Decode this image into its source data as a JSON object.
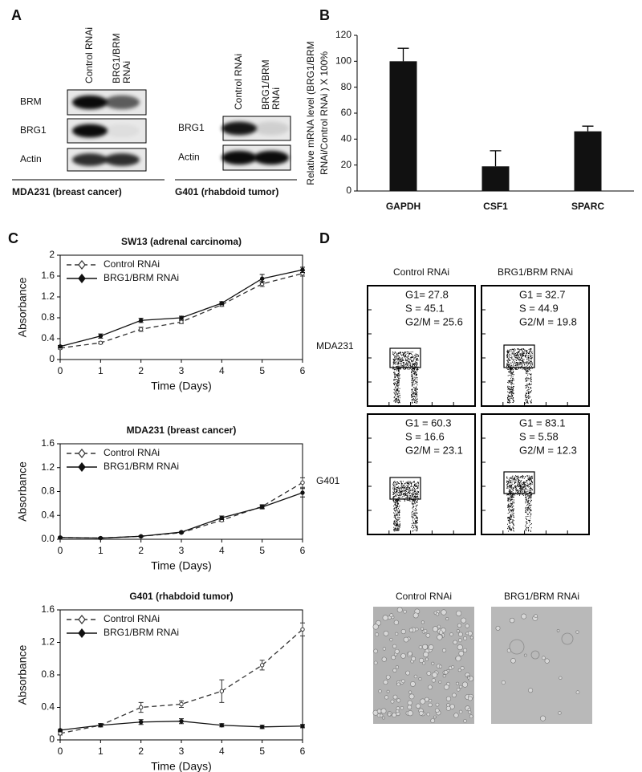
{
  "panels": [
    "A",
    "B",
    "C",
    "D"
  ],
  "blots": [
    {
      "lanes": [
        [
          "Control RNAi"
        ],
        [
          "BRG1/BRM",
          "RNAi"
        ]
      ],
      "rows": [
        "BRM",
        "BRG1",
        "Actin"
      ],
      "caption": "MDA231 (breast cancer)"
    },
    {
      "lanes": [
        [
          "Control RNAi"
        ],
        [
          "BRG1/BRM",
          "RNAi"
        ]
      ],
      "rows": [
        "BRG1",
        "Actin"
      ],
      "caption": "G401 (rhabdoid tumor)"
    }
  ],
  "chart_data": [
    {
      "type": "bar",
      "ylabel": [
        "Relative mRNA level (BRG1/BRM",
        "RNAi/Control RNAi ) X 100%"
      ],
      "categories": [
        "GAPDH",
        "CSF1",
        "SPARC"
      ],
      "values": [
        100,
        19,
        46
      ],
      "errors": [
        10,
        12,
        4
      ],
      "color": "#111111",
      "ylim": [
        0,
        120
      ],
      "yticks": [
        0,
        20,
        40,
        60,
        80,
        100,
        120
      ]
    },
    {
      "type": "line",
      "title": "SW13 (adrenal carcinoma)",
      "xlabel": "Time (Days)",
      "ylabel": "Absorbance",
      "legend": "upper left",
      "x": [
        0,
        1,
        2,
        3,
        4,
        5,
        6
      ],
      "xlim": [
        0,
        6
      ],
      "xticks": [
        0,
        1,
        2,
        3,
        4,
        5,
        6
      ],
      "ylim": [
        0,
        2
      ],
      "yticks": [
        0,
        0.4,
        0.8,
        1.2,
        1.6,
        2
      ],
      "series": [
        {
          "name": "Control RNAi",
          "color": "#333333",
          "dash": true,
          "marker": "open",
          "values": [
            0.22,
            0.32,
            0.58,
            0.72,
            1.05,
            1.45,
            1.65
          ],
          "errors": [
            0.02,
            0.02,
            0.04,
            0.03,
            0.03,
            0.05,
            0.05
          ]
        },
        {
          "name": "BRG1/BRM RNAi",
          "color": "#111111",
          "dash": false,
          "marker": "filled",
          "values": [
            0.25,
            0.45,
            0.75,
            0.8,
            1.08,
            1.55,
            1.72
          ],
          "errors": [
            0.02,
            0.04,
            0.04,
            0.03,
            0.03,
            0.08,
            0.05
          ]
        }
      ]
    },
    {
      "type": "line",
      "title": "MDA231 (breast cancer)",
      "xlabel": "Time (Days)",
      "ylabel": "Absorbance",
      "legend": "upper left",
      "x": [
        0,
        1,
        2,
        3,
        4,
        5,
        6
      ],
      "xlim": [
        0,
        6
      ],
      "xticks": [
        0,
        1,
        2,
        3,
        4,
        5,
        6
      ],
      "ylim": [
        0,
        1.6
      ],
      "yticks": [
        {
          "value": 0,
          "label": "0.0"
        },
        0.4,
        0.8,
        1.2,
        1.6
      ],
      "series": [
        {
          "name": "Control RNAi",
          "color": "#333333",
          "dash": true,
          "marker": "open",
          "values": [
            0.03,
            0.02,
            0.05,
            0.11,
            0.32,
            0.55,
            0.95
          ],
          "errors": [
            0.01,
            0.01,
            0.01,
            0.01,
            0.02,
            0.03,
            0.08
          ]
        },
        {
          "name": "BRG1/BRM RNAi",
          "color": "#111111",
          "dash": false,
          "marker": "filled",
          "values": [
            0.03,
            0.02,
            0.05,
            0.12,
            0.36,
            0.54,
            0.78
          ],
          "errors": [
            0.01,
            0.01,
            0.01,
            0.01,
            0.03,
            0.03,
            0.07
          ]
        }
      ]
    },
    {
      "type": "line",
      "title": "G401 (rhabdoid tumor)",
      "xlabel": "Time (Days)",
      "ylabel": "Absorbance",
      "legend": "upper left",
      "x": [
        0,
        1,
        2,
        3,
        4,
        5,
        6
      ],
      "xlim": [
        0,
        6
      ],
      "xticks": [
        0,
        1,
        2,
        3,
        4,
        5,
        6
      ],
      "ylim": [
        0,
        1.6
      ],
      "yticks": [
        0,
        0.4,
        0.8,
        1.2,
        1.6
      ],
      "series": [
        {
          "name": "Control RNAi",
          "color": "#333333",
          "dash": true,
          "marker": "open",
          "values": [
            0.08,
            0.18,
            0.4,
            0.44,
            0.6,
            0.92,
            1.36
          ],
          "errors": [
            0.02,
            0.02,
            0.06,
            0.04,
            0.14,
            0.06,
            0.08
          ]
        },
        {
          "name": "BRG1/BRM RNAi",
          "color": "#111111",
          "dash": false,
          "marker": "filled",
          "values": [
            0.12,
            0.18,
            0.22,
            0.23,
            0.18,
            0.16,
            0.17
          ],
          "errors": [
            0.01,
            0.02,
            0.03,
            0.03,
            0.02,
            0.02,
            0.02
          ]
        }
      ]
    }
  ],
  "flow": {
    "columns": [
      "Control RNAi",
      "BRG1/BRM RNAi"
    ],
    "rows": [
      "MDA231",
      "G401"
    ],
    "stats": [
      [
        [
          "G1= 27.8",
          "S = 45.1",
          "G2/M = 25.6"
        ],
        [
          "G1 = 32.7",
          "S = 44.9",
          "G2/M = 19.8"
        ]
      ],
      [
        [
          "G1 = 60.3",
          "S = 16.6",
          "G2/M = 23.1"
        ],
        [
          "G1 = 83.1",
          "S = 5.58",
          "G2/M = 12.3"
        ]
      ]
    ]
  },
  "micrographs": {
    "labels": [
      "Control RNAi",
      "BRG1/BRM RNAi"
    ]
  }
}
